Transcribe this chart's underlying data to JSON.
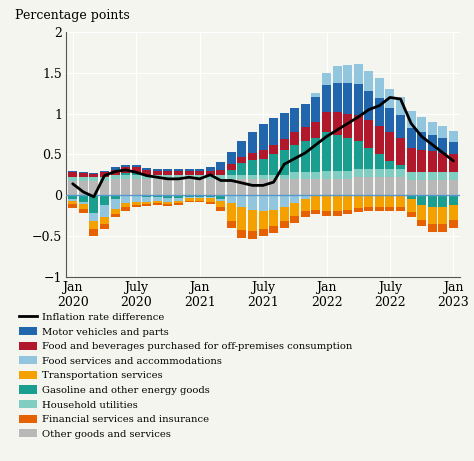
{
  "title": "Percentage points",
  "ylim": [
    -1.0,
    2.0
  ],
  "yticks": [
    -1.0,
    -0.5,
    0.0,
    0.5,
    1.0,
    1.5,
    2.0
  ],
  "ytick_labels": [
    "−1",
    "−0.5",
    "0",
    "0.5",
    "1",
    "1.5",
    "2"
  ],
  "xtick_positions": [
    0,
    6,
    12,
    18,
    24,
    30,
    36
  ],
  "xtick_labels": [
    "Jan\n2020",
    "July\n2020",
    "Jan\n2021",
    "July\n2021",
    "Jan\n2022",
    "July\n2022",
    "Jan\n2023"
  ],
  "categories_keys": [
    "other_goods",
    "household_utilities",
    "gasoline",
    "food_beverages",
    "motor_vehicles",
    "food_services",
    "transportation",
    "financial_services"
  ],
  "bar_colors": [
    "#b8b8b8",
    "#80cdc1",
    "#1a9e8f",
    "#b2182b",
    "#2166ac",
    "#92c5de",
    "#f4a100",
    "#e66101"
  ],
  "other_goods": [
    0.17,
    0.17,
    0.17,
    0.17,
    0.2,
    0.2,
    0.2,
    0.2,
    0.2,
    0.2,
    0.2,
    0.2,
    0.2,
    0.2,
    0.2,
    0.2,
    0.2,
    0.2,
    0.2,
    0.2,
    0.2,
    0.2,
    0.2,
    0.2,
    0.2,
    0.2,
    0.2,
    0.22,
    0.22,
    0.22,
    0.22,
    0.22,
    0.18,
    0.18,
    0.18,
    0.18,
    0.18
  ],
  "household_utilities": [
    0.05,
    0.05,
    0.05,
    0.05,
    0.05,
    0.05,
    0.05,
    0.05,
    0.05,
    0.05,
    0.05,
    0.05,
    0.05,
    0.05,
    0.05,
    0.05,
    0.05,
    0.05,
    0.05,
    0.05,
    0.05,
    0.08,
    0.08,
    0.08,
    0.1,
    0.1,
    0.1,
    0.1,
    0.1,
    0.1,
    0.1,
    0.1,
    0.1,
    0.1,
    0.1,
    0.1,
    0.1
  ],
  "gasoline": [
    -0.05,
    -0.08,
    -0.22,
    -0.12,
    -0.05,
    0.02,
    0.02,
    -0.02,
    -0.02,
    -0.04,
    -0.04,
    -0.02,
    -0.02,
    -0.02,
    -0.05,
    0.06,
    0.14,
    0.18,
    0.2,
    0.25,
    0.3,
    0.33,
    0.38,
    0.42,
    0.47,
    0.44,
    0.4,
    0.34,
    0.26,
    0.18,
    0.1,
    0.05,
    -0.05,
    -0.12,
    -0.15,
    -0.15,
    -0.12
  ],
  "food_beverages": [
    0.06,
    0.05,
    0.04,
    0.06,
    0.06,
    0.07,
    0.07,
    0.06,
    0.05,
    0.05,
    0.05,
    0.05,
    0.05,
    0.05,
    0.06,
    0.07,
    0.08,
    0.09,
    0.1,
    0.12,
    0.14,
    0.16,
    0.18,
    0.2,
    0.25,
    0.28,
    0.3,
    0.32,
    0.34,
    0.35,
    0.35,
    0.33,
    0.3,
    0.28,
    0.26,
    0.24,
    0.22
  ],
  "motor_vehicles": [
    0.02,
    0.01,
    0.01,
    0.02,
    0.03,
    0.03,
    0.03,
    0.02,
    0.02,
    0.02,
    0.02,
    0.02,
    0.02,
    0.05,
    0.1,
    0.15,
    0.2,
    0.25,
    0.32,
    0.33,
    0.32,
    0.3,
    0.28,
    0.3,
    0.33,
    0.36,
    0.38,
    0.38,
    0.36,
    0.34,
    0.3,
    0.28,
    0.25,
    0.22,
    0.2,
    0.18,
    0.15
  ],
  "food_services": [
    -0.02,
    -0.03,
    -0.1,
    -0.15,
    -0.12,
    -0.1,
    -0.08,
    -0.06,
    -0.05,
    -0.04,
    -0.03,
    -0.02,
    -0.02,
    -0.02,
    -0.02,
    -0.1,
    -0.15,
    -0.18,
    -0.2,
    -0.18,
    -0.14,
    -0.1,
    -0.05,
    0.05,
    0.15,
    0.2,
    0.22,
    0.25,
    0.25,
    0.25,
    0.23,
    0.22,
    0.2,
    0.18,
    0.16,
    0.15,
    0.14
  ],
  "transportation": [
    -0.04,
    -0.06,
    -0.1,
    -0.08,
    -0.06,
    -0.05,
    -0.04,
    -0.03,
    -0.03,
    -0.03,
    -0.03,
    -0.03,
    -0.03,
    -0.04,
    -0.07,
    -0.22,
    -0.28,
    -0.26,
    -0.22,
    -0.2,
    -0.18,
    -0.16,
    -0.14,
    -0.18,
    -0.2,
    -0.2,
    -0.18,
    -0.16,
    -0.15,
    -0.14,
    -0.14,
    -0.15,
    -0.16,
    -0.18,
    -0.2,
    -0.2,
    -0.18
  ],
  "financial_services": [
    -0.05,
    -0.05,
    -0.08,
    -0.06,
    -0.04,
    -0.04,
    -0.02,
    -0.02,
    -0.02,
    -0.02,
    -0.02,
    -0.02,
    -0.02,
    -0.03,
    -0.05,
    -0.08,
    -0.1,
    -0.1,
    -0.08,
    -0.08,
    -0.08,
    -0.08,
    -0.08,
    -0.05,
    -0.05,
    -0.05,
    -0.05,
    -0.05,
    -0.05,
    -0.05,
    -0.05,
    -0.05,
    -0.06,
    -0.08,
    -0.1,
    -0.1,
    -0.1
  ],
  "inflation_line": [
    0.14,
    0.04,
    -0.02,
    0.24,
    0.29,
    0.31,
    0.28,
    0.24,
    0.22,
    0.2,
    0.2,
    0.22,
    0.2,
    0.25,
    0.18,
    0.18,
    0.15,
    0.12,
    0.12,
    0.16,
    0.38,
    0.45,
    0.52,
    0.62,
    0.72,
    0.8,
    0.88,
    0.96,
    1.05,
    1.1,
    1.2,
    1.18,
    0.88,
    0.72,
    0.62,
    0.52,
    0.42
  ],
  "legend_labels": [
    "Inflation rate difference",
    "Motor vehicles and parts",
    "Food and beverages purchased for off-premises consumption",
    "Food services and accommodations",
    "Transportation services",
    "Gasoline and other energy goods",
    "Household utilities",
    "Financial services and insurance",
    "Other goods and services"
  ],
  "legend_line_color": "black",
  "legend_patch_colors": [
    "#2166ac",
    "#b2182b",
    "#92c5de",
    "#f4a100",
    "#1a9e8f",
    "#80cdc1",
    "#e66101",
    "#b8b8b8"
  ],
  "zero_line_color": "#5599cc",
  "background_color": "#f5f5f0"
}
